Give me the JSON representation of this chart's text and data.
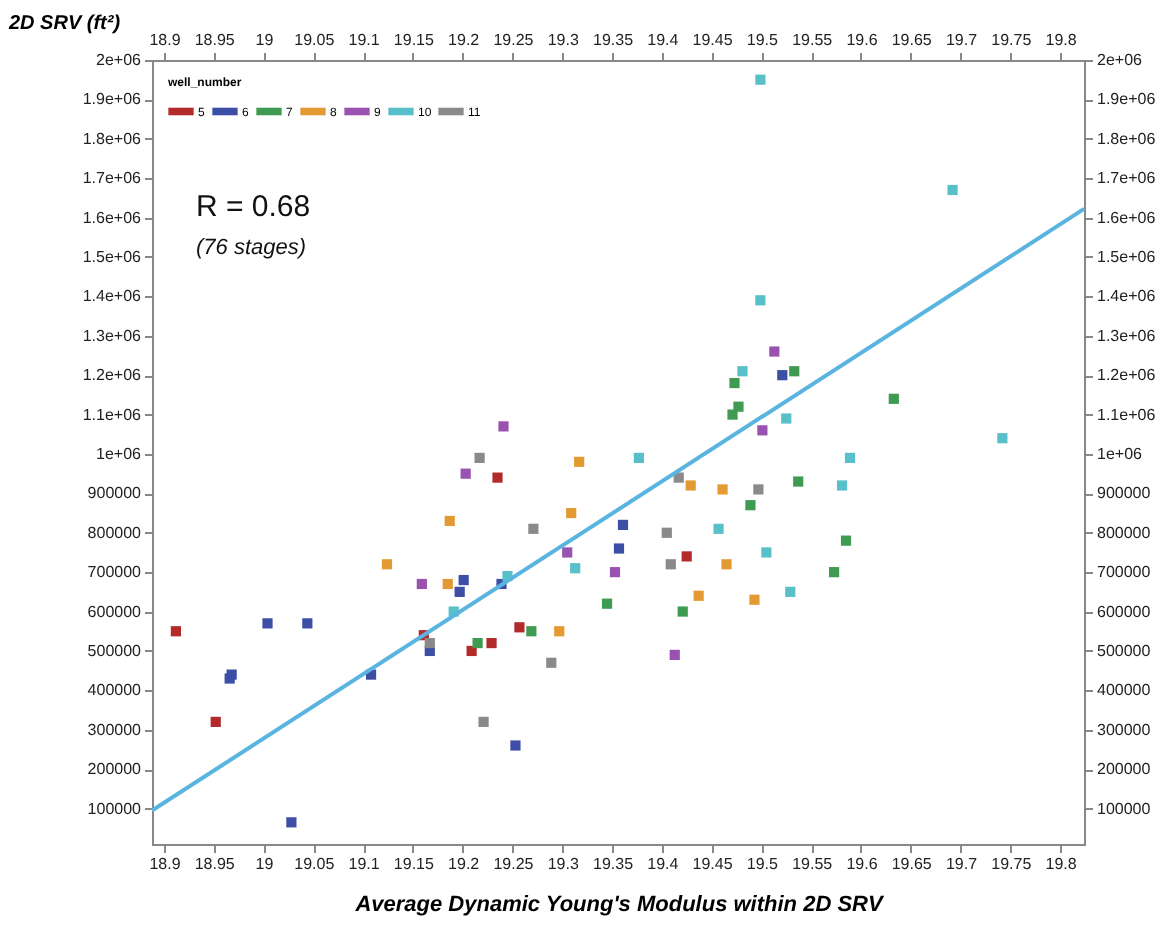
{
  "chart_data": {
    "type": "scatter",
    "xlabel": "Average Dynamic Young's Modulus within 2D SRV",
    "ylabel": "2D SRV (ft²)",
    "legend_title": "well_number",
    "legend": "top left",
    "grid": false,
    "marker": "square",
    "annotations": [
      "R = 0.68",
      "(76 stages)"
    ],
    "xlim": [
      18.888,
      19.824
    ],
    "xticks": [
      18.9,
      18.95,
      19,
      19.05,
      19.1,
      19.15,
      19.2,
      19.25,
      19.3,
      19.35,
      19.4,
      19.45,
      19.5,
      19.55,
      19.6,
      19.65,
      19.7,
      19.75,
      19.8
    ],
    "x2lim": [
      18.888,
      19.824
    ],
    "x2ticks": [
      18.9,
      18.95,
      19,
      19.05,
      19.1,
      19.15,
      19.2,
      19.25,
      19.3,
      19.35,
      19.4,
      19.45,
      19.5,
      19.55,
      19.6,
      19.65,
      19.7,
      19.75,
      19.8
    ],
    "ylim": [
      10000,
      2000000
    ],
    "yticks": [
      100000,
      200000,
      300000,
      400000,
      500000,
      600000,
      700000,
      800000,
      900000,
      {
        "value": 1000000,
        "label": "1e+06"
      },
      {
        "value": 1100000,
        "label": "1.1e+06"
      },
      {
        "value": 1200000,
        "label": "1.2e+06"
      },
      {
        "value": 1300000,
        "label": "1.3e+06"
      },
      {
        "value": 1400000,
        "label": "1.4e+06"
      },
      {
        "value": 1500000,
        "label": "1.5e+06"
      },
      {
        "value": 1600000,
        "label": "1.6e+06"
      },
      {
        "value": 1700000,
        "label": "1.7e+06"
      },
      {
        "value": 1800000,
        "label": "1.8e+06"
      },
      {
        "value": 1900000,
        "label": "1.9e+06"
      },
      {
        "value": 2000000,
        "label": "2e+06"
      }
    ],
    "y2lim": [
      10000,
      2000000
    ],
    "y2ticks": [
      100000,
      200000,
      300000,
      400000,
      500000,
      600000,
      700000,
      800000,
      900000,
      {
        "value": 1000000,
        "label": "1e+06"
      },
      {
        "value": 1100000,
        "label": "1.1e+06"
      },
      {
        "value": 1200000,
        "label": "1.2e+06"
      },
      {
        "value": 1300000,
        "label": "1.3e+06"
      },
      {
        "value": 1400000,
        "label": "1.4e+06"
      },
      {
        "value": 1500000,
        "label": "1.5e+06"
      },
      {
        "value": 1600000,
        "label": "1.6e+06"
      },
      {
        "value": 1700000,
        "label": "1.7e+06"
      },
      {
        "value": 1800000,
        "label": "1.8e+06"
      },
      {
        "value": 1900000,
        "label": "1.9e+06"
      },
      {
        "value": 2000000,
        "label": "2e+06"
      }
    ],
    "series": [
      {
        "name": "5",
        "color": "#b22a2a",
        "x": [
          18.912,
          18.952,
          19.161,
          19.209,
          19.229,
          19.235,
          19.257,
          19.425
        ],
        "values": [
          550000,
          320000,
          540000,
          500000,
          520000,
          940000,
          560000,
          740000
        ]
      },
      {
        "name": "6",
        "color": "#3c4ea6",
        "x": [
          18.966,
          18.968,
          19.004,
          19.028,
          19.044,
          19.108,
          19.167,
          19.197,
          19.201,
          19.239,
          19.253,
          19.357,
          19.361,
          19.521
        ],
        "values": [
          430000,
          440000,
          570000,
          65000,
          570000,
          440000,
          500000,
          650000,
          680000,
          670000,
          260000,
          760000,
          820000,
          1200000
        ]
      },
      {
        "name": "7",
        "color": "#3f9a52",
        "x": [
          19.215,
          19.269,
          19.345,
          19.421,
          19.471,
          19.473,
          19.477,
          19.489,
          19.533,
          19.537,
          19.633,
          19.585,
          19.573
        ],
        "values": [
          520000,
          550000,
          620000,
          600000,
          1100000,
          1180000,
          1120000,
          870000,
          1210000,
          930000,
          1140000,
          780000,
          700000
        ]
      },
      {
        "name": "8",
        "color": "#e49a32",
        "x": [
          19.124,
          19.185,
          19.187,
          19.297,
          19.309,
          19.317,
          19.429,
          19.437,
          19.461,
          19.465,
          19.493
        ],
        "values": [
          720000,
          670000,
          830000,
          550000,
          850000,
          980000,
          920000,
          640000,
          910000,
          720000,
          630000
        ]
      },
      {
        "name": "9",
        "color": "#9a52b0",
        "x": [
          19.159,
          19.203,
          19.241,
          19.305,
          19.353,
          19.413,
          19.501,
          19.513
        ],
        "values": [
          670000,
          950000,
          1070000,
          750000,
          700000,
          490000,
          1060000,
          1260000
        ]
      },
      {
        "name": "10",
        "color": "#58c0c8",
        "x": [
          19.191,
          19.245,
          19.313,
          19.377,
          19.457,
          19.481,
          19.505,
          19.525,
          19.529,
          19.499,
          19.581,
          19.589,
          19.499,
          19.692,
          19.742
        ],
        "values": [
          600000,
          690000,
          710000,
          990000,
          810000,
          1210000,
          750000,
          1090000,
          650000,
          1390000,
          920000,
          990000,
          1950000,
          1670000,
          1040000
        ]
      },
      {
        "name": "11",
        "color": "#8a8a8a",
        "x": [
          19.167,
          19.217,
          19.221,
          19.271,
          19.289,
          19.405,
          19.409,
          19.417,
          19.497
        ],
        "values": [
          520000,
          990000,
          320000,
          810000,
          470000,
          800000,
          720000,
          940000,
          910000
        ]
      },
      {
        "type": "line",
        "marker": "none",
        "color": "#5ab4e0",
        "x": [
          18.888,
          19.824
        ],
        "values": [
          95000,
          1622000
        ]
      }
    ]
  }
}
